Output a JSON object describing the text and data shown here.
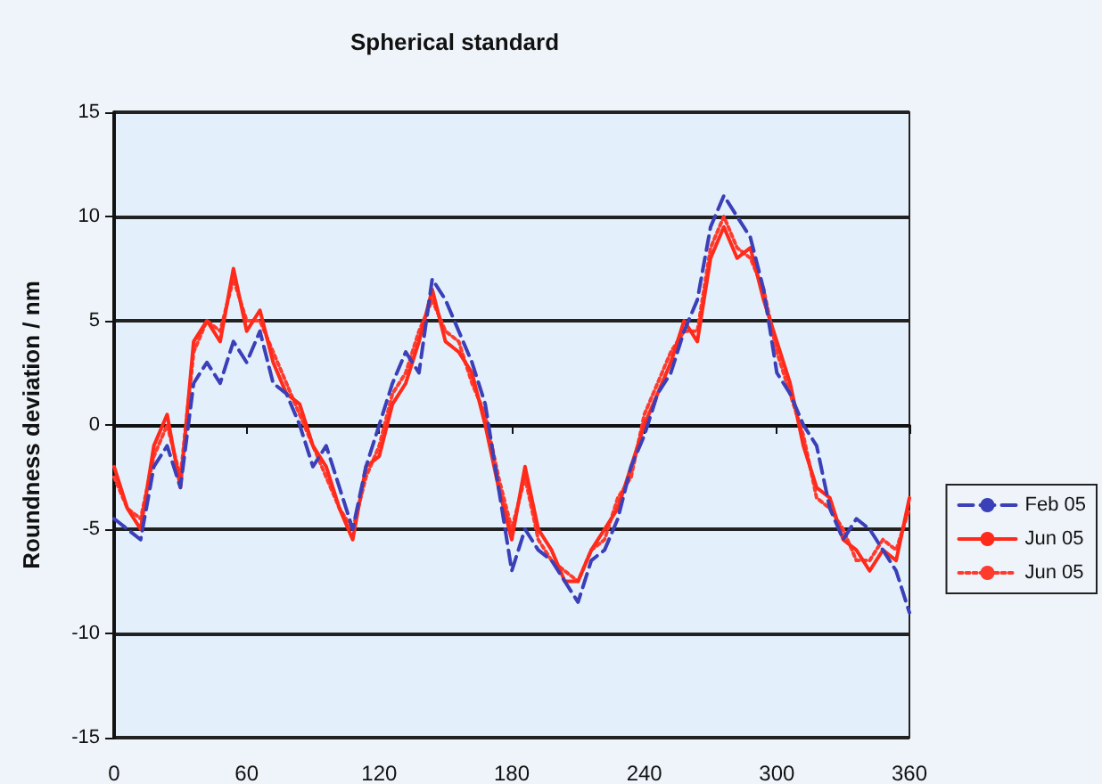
{
  "chart_data": {
    "type": "line",
    "title": "Spherical standard",
    "ylabel": "Roundness deviation / nm",
    "x": [
      0,
      6,
      12,
      18,
      24,
      30,
      36,
      42,
      48,
      54,
      60,
      66,
      72,
      78,
      84,
      90,
      96,
      102,
      108,
      114,
      120,
      126,
      132,
      138,
      144,
      150,
      156,
      162,
      168,
      174,
      180,
      186,
      192,
      198,
      204,
      210,
      216,
      222,
      228,
      234,
      240,
      246,
      252,
      258,
      264,
      270,
      276,
      282,
      288,
      294,
      300,
      306,
      312,
      318,
      324,
      330,
      336,
      342,
      348,
      354,
      360
    ],
    "series": [
      {
        "name": "Feb 05",
        "color": "#3b3fb8",
        "line_style": "dashed",
        "values": [
          -4.5,
          -5,
          -5.5,
          -2,
          -1,
          -3,
          2,
          3,
          2,
          4,
          3,
          4.5,
          2,
          1.5,
          0,
          -2,
          -1,
          -3,
          -5,
          -2,
          0,
          2,
          3.5,
          2.5,
          7,
          6,
          4.5,
          3,
          1,
          -3,
          -7,
          -5,
          -6,
          -6.5,
          -7.5,
          -8.5,
          -6.5,
          -6,
          -4.5,
          -2,
          -0.5,
          1.5,
          2.5,
          4.5,
          6,
          9.5,
          11,
          10,
          9,
          6.5,
          2.5,
          1.5,
          0,
          -1,
          -4,
          -5.5,
          -4.5,
          -5,
          -6,
          -7,
          -9
        ]
      },
      {
        "name": "Jun 05",
        "color": "#ff2a1a",
        "line_style": "solid",
        "values": [
          -2,
          -4,
          -5,
          -1,
          0.5,
          -3,
          4,
          5,
          4,
          7.5,
          4.5,
          5.5,
          3,
          1.5,
          1,
          -1,
          -2,
          -4,
          -5.5,
          -2,
          -1.5,
          1,
          2,
          4,
          6.5,
          4,
          3.5,
          2.5,
          0,
          -3,
          -5.5,
          -2,
          -5,
          -6,
          -7.5,
          -7.5,
          -6,
          -5,
          -4,
          -2,
          0,
          1.5,
          3,
          5,
          4,
          8,
          9.5,
          8,
          8.5,
          6,
          4,
          2,
          -1,
          -3,
          -3.5,
          -5.5,
          -6,
          -7,
          -6,
          -6.5,
          -3.5
        ]
      },
      {
        "name": "Jun 05",
        "color": "#ff3b2e",
        "line_style": "dotted",
        "values": [
          -2.5,
          -4,
          -4.5,
          -1.5,
          0,
          -2.5,
          3.5,
          5,
          4.5,
          7,
          5,
          5,
          3.5,
          2,
          0.5,
          -1,
          -2.5,
          -4,
          -5,
          -2.5,
          -1,
          1.5,
          2.5,
          4.5,
          6,
          4.5,
          4,
          2,
          0.5,
          -2.5,
          -5,
          -2.5,
          -5.5,
          -6.5,
          -7,
          -7.5,
          -6,
          -5.5,
          -3.5,
          -2.5,
          0.5,
          2,
          3.5,
          4.5,
          4.5,
          8.5,
          10,
          8.5,
          8,
          6.5,
          3.5,
          1.5,
          -0.5,
          -3.5,
          -4,
          -5,
          -6.5,
          -6.5,
          -5.5,
          -6,
          -4
        ]
      }
    ],
    "xlim": [
      0,
      360
    ],
    "xticks": [
      0,
      60,
      120,
      180,
      240,
      300,
      360
    ],
    "ylim": [
      -15,
      15
    ],
    "yticks": [
      -15,
      -10,
      -5,
      0,
      5,
      10,
      15
    ],
    "grid": "y",
    "legend": "right",
    "marker": "none"
  }
}
